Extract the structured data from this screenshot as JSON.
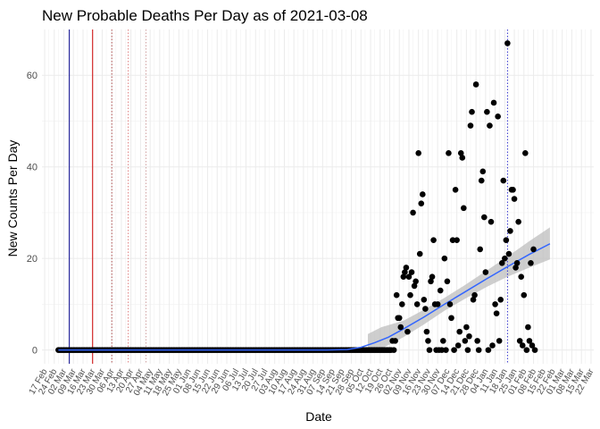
{
  "chart_data": {
    "type": "scatter",
    "title": "New Probable Deaths Per Day as of 2021-03-08",
    "xlabel": "Date",
    "ylabel": "New Counts Per Day",
    "xlim": [
      "2020-02-15",
      "2021-03-24"
    ],
    "ylim": [
      -3,
      70
    ],
    "y_ticks": [
      0,
      20,
      40,
      60
    ],
    "x_tick_start": "2020-02-17",
    "x_tick_step_days": 7,
    "x_tick_labels": [
      "17 Feb",
      "24 Feb",
      "02 Mar",
      "09 Mar",
      "16 Mar",
      "23 Mar",
      "30 Mar",
      "06 Apr",
      "13 Apr",
      "20 Apr",
      "27 Apr",
      "04 May",
      "11 May",
      "18 May",
      "25 May",
      "01 Jun",
      "08 Jun",
      "15 Jun",
      "22 Jun",
      "29 Jun",
      "06 Jul",
      "13 Jul",
      "20 Jul",
      "27 Jul",
      "03 Aug",
      "10 Aug",
      "17 Aug",
      "24 Aug",
      "31 Aug",
      "07 Sep",
      "14 Sep",
      "21 Sep",
      "28 Sep",
      "05 Oct",
      "12 Oct",
      "19 Oct",
      "26 Oct",
      "02 Nov",
      "09 Nov",
      "16 Nov",
      "23 Nov",
      "30 Nov",
      "07 Dec",
      "14 Dec",
      "21 Dec",
      "28 Dec",
      "04 Jan",
      "11 Jan",
      "18 Jan",
      "25 Jan",
      "01 Feb",
      "08 Feb",
      "15 Feb",
      "22 Feb",
      "01 Mar",
      "08 Mar",
      "15 Mar",
      "22 Mar"
    ],
    "grid": true,
    "vlines": [
      {
        "date": "2020-03-06",
        "color": "#00008b",
        "style": "solid"
      },
      {
        "date": "2020-03-23",
        "color": "#cc0000",
        "style": "solid"
      },
      {
        "date": "2020-04-06",
        "color": "#b05050",
        "style": "dotted"
      },
      {
        "date": "2020-04-18",
        "color": "#e08080",
        "style": "dotted"
      },
      {
        "date": "2020-05-01",
        "color": "#d0a0a0",
        "style": "dotted"
      },
      {
        "date": "2021-01-20",
        "color": "#3333cc",
        "style": "dotted"
      }
    ],
    "series": [
      {
        "points": [
          [
            "2020-10-28",
            2
          ],
          [
            "2020-10-29",
            0
          ],
          [
            "2020-10-30",
            2
          ],
          [
            "2020-10-31",
            12
          ],
          [
            "2020-11-01",
            7
          ],
          [
            "2020-11-02",
            7
          ],
          [
            "2020-11-03",
            5
          ],
          [
            "2020-11-04",
            10
          ],
          [
            "2020-11-05",
            16
          ],
          [
            "2020-11-06",
            17
          ],
          [
            "2020-11-07",
            18
          ],
          [
            "2020-11-08",
            4
          ],
          [
            "2020-11-09",
            16
          ],
          [
            "2020-11-10",
            12
          ],
          [
            "2020-11-11",
            17
          ],
          [
            "2020-11-12",
            30
          ],
          [
            "2020-11-13",
            14
          ],
          [
            "2020-11-14",
            15
          ],
          [
            "2020-11-15",
            10
          ],
          [
            "2020-11-16",
            43
          ],
          [
            "2020-11-17",
            21
          ],
          [
            "2020-11-18",
            32
          ],
          [
            "2020-11-19",
            34
          ],
          [
            "2020-11-20",
            11
          ],
          [
            "2020-11-21",
            9
          ],
          [
            "2020-11-22",
            4
          ],
          [
            "2020-11-23",
            2
          ],
          [
            "2020-11-24",
            0
          ],
          [
            "2020-11-25",
            15
          ],
          [
            "2020-11-26",
            16
          ],
          [
            "2020-11-27",
            24
          ],
          [
            "2020-11-28",
            10
          ],
          [
            "2020-11-29",
            0
          ],
          [
            "2020-11-30",
            10
          ],
          [
            "2020-12-01",
            0
          ],
          [
            "2020-12-02",
            13
          ],
          [
            "2020-12-03",
            0
          ],
          [
            "2020-12-04",
            2
          ],
          [
            "2020-12-05",
            20
          ],
          [
            "2020-12-06",
            0
          ],
          [
            "2020-12-07",
            15
          ],
          [
            "2020-12-08",
            43
          ],
          [
            "2020-12-09",
            10
          ],
          [
            "2020-12-10",
            7
          ],
          [
            "2020-12-11",
            24
          ],
          [
            "2020-12-12",
            0
          ],
          [
            "2020-12-13",
            35
          ],
          [
            "2020-12-14",
            24
          ],
          [
            "2020-12-15",
            1
          ],
          [
            "2020-12-16",
            4
          ],
          [
            "2020-12-17",
            43
          ],
          [
            "2020-12-18",
            42
          ],
          [
            "2020-12-19",
            31
          ],
          [
            "2020-12-20",
            2
          ],
          [
            "2020-12-21",
            5
          ],
          [
            "2020-12-22",
            0
          ],
          [
            "2020-12-23",
            3
          ],
          [
            "2020-12-24",
            49
          ],
          [
            "2020-12-25",
            52
          ],
          [
            "2020-12-26",
            11
          ],
          [
            "2020-12-27",
            12
          ],
          [
            "2020-12-28",
            58
          ],
          [
            "2020-12-29",
            2
          ],
          [
            "2020-12-30",
            0
          ],
          [
            "2020-12-31",
            22
          ],
          [
            "2021-01-01",
            37
          ],
          [
            "2021-01-02",
            39
          ],
          [
            "2021-01-03",
            29
          ],
          [
            "2021-01-04",
            17
          ],
          [
            "2021-01-05",
            52
          ],
          [
            "2021-01-06",
            0
          ],
          [
            "2021-01-07",
            49
          ],
          [
            "2021-01-08",
            28
          ],
          [
            "2021-01-09",
            1
          ],
          [
            "2021-01-10",
            54
          ],
          [
            "2021-01-11",
            10
          ],
          [
            "2021-01-12",
            8
          ],
          [
            "2021-01-13",
            51
          ],
          [
            "2021-01-14",
            2
          ],
          [
            "2021-01-15",
            11
          ],
          [
            "2021-01-16",
            19
          ],
          [
            "2021-01-17",
            37
          ],
          [
            "2021-01-18",
            20
          ],
          [
            "2021-01-19",
            24
          ],
          [
            "2021-01-20",
            67
          ],
          [
            "2021-01-21",
            21
          ],
          [
            "2021-01-22",
            26
          ],
          [
            "2021-01-23",
            35
          ],
          [
            "2021-01-24",
            35
          ],
          [
            "2021-01-25",
            33
          ],
          [
            "2021-01-26",
            18
          ],
          [
            "2021-01-27",
            19
          ],
          [
            "2021-01-28",
            28
          ],
          [
            "2021-01-29",
            2
          ],
          [
            "2021-01-30",
            16
          ],
          [
            "2021-01-31",
            1
          ],
          [
            "2021-02-01",
            12
          ],
          [
            "2021-02-02",
            43
          ],
          [
            "2021-02-03",
            0
          ],
          [
            "2021-02-04",
            5
          ],
          [
            "2021-02-05",
            2
          ],
          [
            "2021-02-06",
            19
          ],
          [
            "2021-02-07",
            1
          ],
          [
            "2021-02-08",
            22
          ],
          [
            "2021-02-09",
            0
          ]
        ],
        "zero_run": [
          "2020-02-27",
          "2020-10-27"
        ],
        "color": "#000000"
      }
    ],
    "trend": {
      "color": "#3366ff",
      "band_color": "#bdbdbd",
      "points": [
        [
          "2020-02-27",
          0
        ],
        [
          "2020-09-10",
          0
        ],
        [
          "2020-09-25",
          0.1
        ],
        [
          "2020-10-05",
          0.6
        ],
        [
          "2020-10-15",
          1.6
        ],
        [
          "2020-10-25",
          2.8
        ],
        [
          "2020-11-05",
          4.6
        ],
        [
          "2020-11-20",
          7.2
        ],
        [
          "2020-12-05",
          10.0
        ],
        [
          "2020-12-20",
          12.7
        ],
        [
          "2021-01-05",
          15.6
        ],
        [
          "2021-01-20",
          18.2
        ],
        [
          "2021-02-05",
          20.9
        ],
        [
          "2021-02-09",
          21.5
        ],
        [
          "2021-02-20",
          23.2
        ]
      ],
      "band": [
        [
          "2020-10-10",
          0,
          3.5
        ],
        [
          "2020-10-20",
          0.3,
          5.0
        ],
        [
          "2020-11-05",
          2.8,
          6.4
        ],
        [
          "2020-11-20",
          5.6,
          8.8
        ],
        [
          "2020-12-05",
          8.6,
          11.4
        ],
        [
          "2020-12-20",
          11.2,
          14.2
        ],
        [
          "2021-01-05",
          13.8,
          17.4
        ],
        [
          "2021-01-20",
          16.0,
          20.4
        ],
        [
          "2021-02-05",
          18.0,
          23.8
        ],
        [
          "2021-02-20",
          19.8,
          26.8
        ]
      ]
    }
  }
}
